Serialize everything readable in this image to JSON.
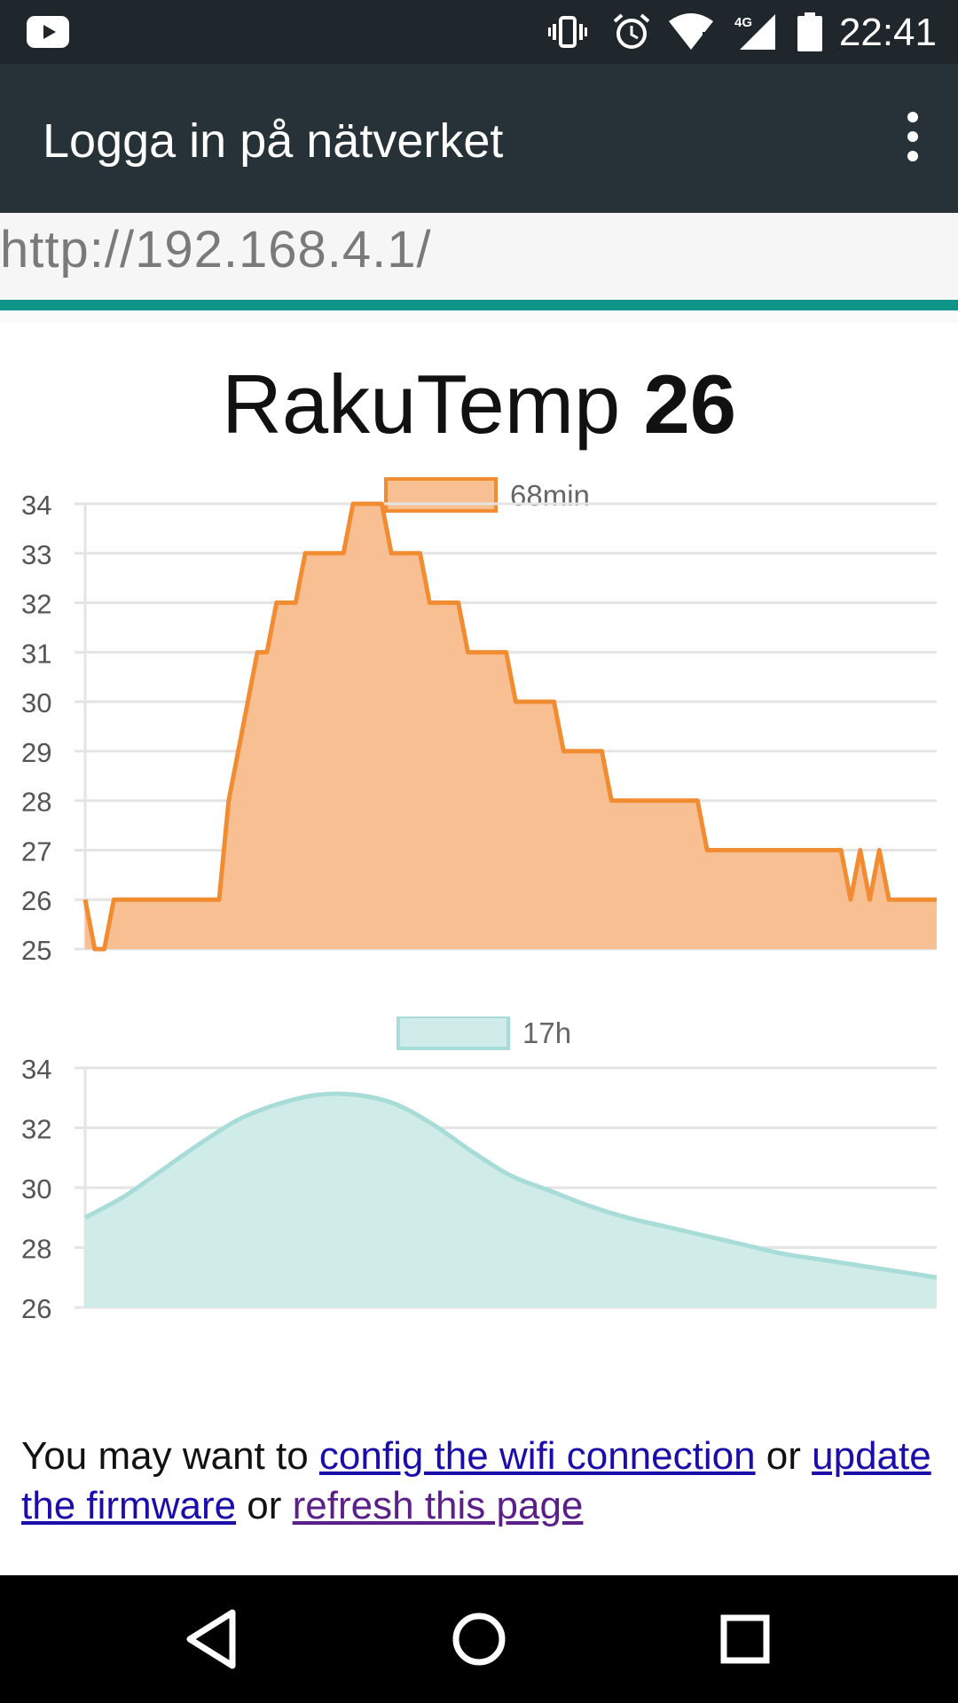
{
  "status_bar": {
    "time": "22:41",
    "icons": [
      "youtube-icon",
      "vibrate-icon",
      "alarm-icon",
      "wifi-icon",
      "signal-4g-icon",
      "battery-icon"
    ],
    "network_label": "4G"
  },
  "toolbar": {
    "title": "Logga in på nätverket",
    "menu_icon": "more-vert-icon"
  },
  "url_bar": {
    "url": "http://192.168.4.1/"
  },
  "page": {
    "title_prefix": "RakuTemp",
    "title_value": "26"
  },
  "colors": {
    "toolbar_bg": "#263238",
    "status_bg": "#1f272c",
    "progress": "#0f9587",
    "series1_stroke": "#f28c33",
    "series1_fill": "#f8c092",
    "series2_stroke": "#a8dcd8",
    "series2_fill": "#d0ece8",
    "link": "#1a0dab",
    "visited_link": "#5b1f8a"
  },
  "chart_data": [
    {
      "type": "area",
      "legend_position": "top",
      "series": [
        {
          "name": "68min",
          "values": [
            26,
            25,
            25,
            26,
            26,
            26,
            26,
            26,
            26,
            26,
            26,
            26,
            26,
            26,
            26,
            28,
            29,
            30,
            31,
            31,
            32,
            32,
            32,
            33,
            33,
            33,
            33,
            33,
            34,
            34,
            34,
            34,
            33,
            33,
            33,
            33,
            32,
            32,
            32,
            32,
            31,
            31,
            31,
            31,
            31,
            30,
            30,
            30,
            30,
            30,
            29,
            29,
            29,
            29,
            29,
            28,
            28,
            28,
            28,
            28,
            28,
            28,
            28,
            28,
            28,
            27,
            27,
            27,
            27,
            27,
            27,
            27,
            27,
            27,
            27,
            27,
            27,
            27,
            27,
            27,
            26,
            27,
            26,
            27,
            26,
            26,
            26,
            26,
            26,
            26
          ]
        }
      ],
      "ylim": [
        25,
        34
      ],
      "yticks": [
        25,
        26,
        27,
        28,
        29,
        30,
        31,
        32,
        33,
        34
      ],
      "grid": true
    },
    {
      "type": "area",
      "legend_position": "top",
      "series": [
        {
          "name": "17h",
          "values": [
            29.0,
            29.7,
            30.6,
            31.5,
            32.3,
            32.8,
            33.1,
            33.1,
            32.8,
            32.1,
            31.2,
            30.4,
            29.9,
            29.4,
            29.0,
            28.7,
            28.4,
            28.1,
            27.8,
            27.6,
            27.4,
            27.2,
            27.0
          ]
        }
      ],
      "ylim": [
        26,
        34
      ],
      "yticks": [
        26,
        28,
        30,
        32,
        34
      ],
      "grid": true
    }
  ],
  "footer": {
    "lead": "You may want to ",
    "link1": "config the wifi connection",
    "or1": " or ",
    "link2": "update the firmware",
    "or2": " or ",
    "link3": "refresh this page"
  },
  "nav_bar": {
    "back_icon": "back-icon",
    "home_icon": "home-icon",
    "recents_icon": "recents-icon"
  }
}
